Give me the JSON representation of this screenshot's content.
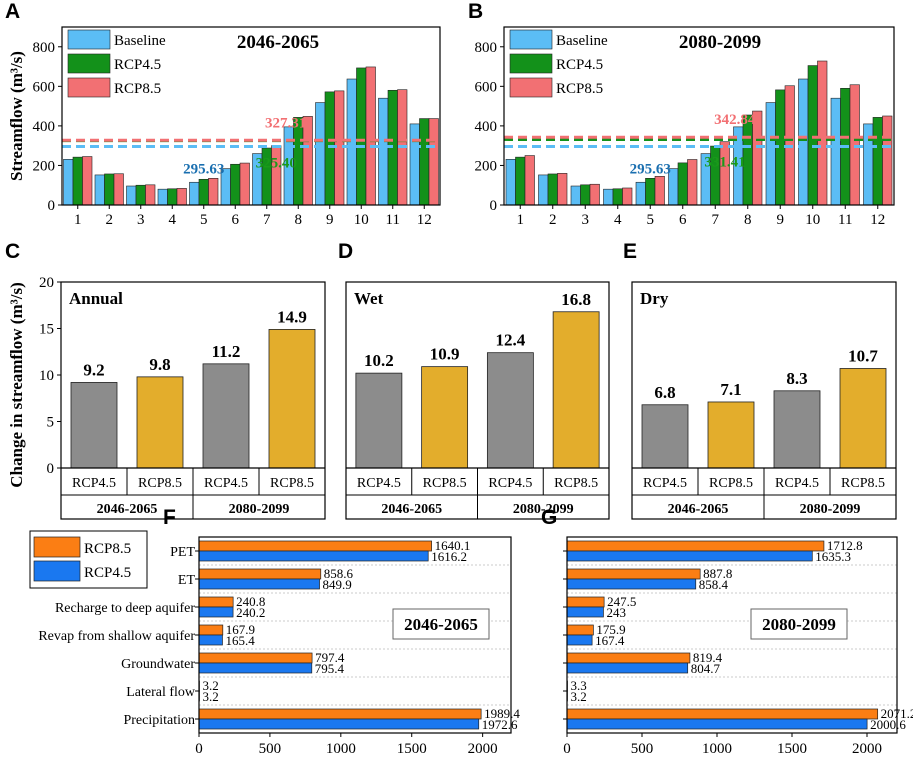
{
  "panels": {
    "A": "A",
    "B": "B",
    "C": "C",
    "D": "D",
    "E": "E",
    "F": "F",
    "G": "G"
  },
  "colors": {
    "baseline": "#5bbdf5",
    "rcp45": "#13911a",
    "rcp85": "#f27073",
    "gray": "#8c8c8c",
    "gold": "#e3ad2c",
    "orange": "#fb7e14",
    "blue": "#1a78f0",
    "blue_text": "#1a6fb0",
    "green_text": "#1a9a1a",
    "red_text": "#f27073"
  },
  "chart_data": [
    {
      "id": "A",
      "type": "bar",
      "title": "2046-2065",
      "ylabel": "Streamflow (m³/s)",
      "ylim": [
        0,
        900
      ],
      "yticks": [
        0,
        200,
        400,
        600,
        800
      ],
      "categories": [
        "1",
        "2",
        "3",
        "4",
        "5",
        "6",
        "7",
        "8",
        "9",
        "10",
        "11",
        "12"
      ],
      "series": [
        {
          "name": "Baseline",
          "values": [
            231,
            152,
            96,
            80,
            115,
            184,
            260,
            395,
            518,
            637,
            540,
            410
          ]
        },
        {
          "name": "RCP4.5",
          "values": [
            242,
            157,
            100,
            82,
            130,
            206,
            288,
            443,
            572,
            693,
            580,
            437
          ]
        },
        {
          "name": "RCP8.5",
          "values": [
            245,
            158,
            102,
            84,
            135,
            212,
            300,
            448,
            577,
            698,
            583,
            437
          ]
        }
      ],
      "hlines": [
        {
          "series": "Baseline",
          "value": 295.63,
          "label": "295.63"
        },
        {
          "series": "RCP4.5",
          "value": 325.4,
          "label": "325.40"
        },
        {
          "series": "RCP8.5",
          "value": 327.31,
          "label": "327.31"
        }
      ]
    },
    {
      "id": "B",
      "type": "bar",
      "title": "2080-2099",
      "ylabel": "",
      "ylim": [
        0,
        900
      ],
      "yticks": [
        0,
        200,
        400,
        600,
        800
      ],
      "categories": [
        "1",
        "2",
        "3",
        "4",
        "5",
        "6",
        "7",
        "8",
        "9",
        "10",
        "11",
        "12"
      ],
      "series": [
        {
          "name": "Baseline",
          "values": [
            231,
            152,
            96,
            80,
            115,
            184,
            260,
            395,
            518,
            637,
            540,
            410
          ]
        },
        {
          "name": "RCP4.5",
          "values": [
            242,
            157,
            102,
            82,
            135,
            213,
            298,
            455,
            582,
            705,
            590,
            443
          ]
        },
        {
          "name": "RCP8.5",
          "values": [
            250,
            160,
            105,
            86,
            145,
            230,
            320,
            475,
            603,
            728,
            608,
            450
          ]
        }
      ],
      "hlines": [
        {
          "series": "Baseline",
          "value": 295.63,
          "label": "295.63"
        },
        {
          "series": "RCP4.5",
          "value": 331.41,
          "label": "331.41"
        },
        {
          "series": "RCP8.5",
          "value": 342.84,
          "label": "342.84"
        }
      ]
    },
    {
      "id": "C",
      "type": "bar",
      "title": "Annual",
      "ylabel": "Change in streamflow (m³/s)",
      "ylim": [
        0,
        20
      ],
      "yticks": [
        0,
        5,
        10,
        15,
        20
      ],
      "categories": [
        "RCP4.5",
        "RCP8.5",
        "RCP4.5",
        "RCP8.5"
      ],
      "groups": [
        "2046-2065",
        "2080-2099"
      ],
      "values": [
        9.2,
        9.8,
        11.2,
        14.9
      ],
      "labels": [
        "9.2",
        "9.8",
        "11.2",
        "14.9"
      ]
    },
    {
      "id": "D",
      "type": "bar",
      "title": "Wet",
      "ylim": [
        0,
        20
      ],
      "categories": [
        "RCP4.5",
        "RCP8.5",
        "RCP4.5",
        "RCP8.5"
      ],
      "groups": [
        "2046-2065",
        "2080-2099"
      ],
      "values": [
        10.2,
        10.9,
        12.4,
        16.8
      ],
      "labels": [
        "10.2",
        "10.9",
        "12.4",
        "16.8"
      ]
    },
    {
      "id": "E",
      "type": "bar",
      "title": "Dry",
      "ylim": [
        0,
        20
      ],
      "categories": [
        "RCP4.5",
        "RCP8.5",
        "RCP4.5",
        "RCP8.5"
      ],
      "groups": [
        "2046-2065",
        "2080-2099"
      ],
      "values": [
        6.8,
        7.1,
        8.3,
        10.7
      ],
      "labels": [
        "6.8",
        "7.1",
        "8.3",
        "10.7"
      ]
    },
    {
      "id": "F",
      "type": "bar",
      "orientation": "horizontal",
      "title": "2046-2065",
      "xlim": [
        0,
        2200
      ],
      "xticks": [
        0,
        500,
        1000,
        1500,
        2000
      ],
      "categories": [
        "PET",
        "ET",
        "Recharge to deep aquifer",
        "Revap from shallow aquifer",
        "Groundwater",
        "Lateral flow",
        "Precipitation"
      ],
      "series": [
        {
          "name": "RCP8.5",
          "values": [
            1640.1,
            858.6,
            240.8,
            167.9,
            797.4,
            3.2,
            1989.4
          ],
          "labels": [
            "1640.1",
            "858.6",
            "240.8",
            "167.9",
            "797.4",
            "3.2",
            "1989.4"
          ]
        },
        {
          "name": "RCP4.5",
          "values": [
            1616.2,
            849.9,
            240.2,
            165.4,
            795.4,
            3.2,
            1972.6
          ],
          "labels": [
            "1616.2",
            "849.9",
            "240.2",
            "165.4",
            "795.4",
            "3.2",
            "1972.6"
          ]
        }
      ]
    },
    {
      "id": "G",
      "type": "bar",
      "orientation": "horizontal",
      "title": "2080-2099",
      "xlim": [
        0,
        2200
      ],
      "xticks": [
        0,
        500,
        1000,
        1500,
        2000
      ],
      "categories": [
        "PET",
        "ET",
        "Recharge to deep aquifer",
        "Revap from shallow aquifer",
        "Groundwater",
        "Lateral flow",
        "Precipitation"
      ],
      "series": [
        {
          "name": "RCP8.5",
          "values": [
            1712.8,
            887.8,
            247.5,
            175.9,
            819.4,
            3.3,
            2071.2
          ],
          "labels": [
            "1712.8",
            "887.8",
            "247.5",
            "175.9",
            "819.4",
            "3.3",
            "2071.2"
          ]
        },
        {
          "name": "RCP4.5",
          "values": [
            1635.3,
            858.4,
            243,
            167.4,
            804.7,
            3.2,
            2000.6
          ],
          "labels": [
            "1635.3",
            "858.4",
            "243",
            "167.4",
            "804.7",
            "3.2",
            "2000.6"
          ]
        }
      ]
    }
  ]
}
